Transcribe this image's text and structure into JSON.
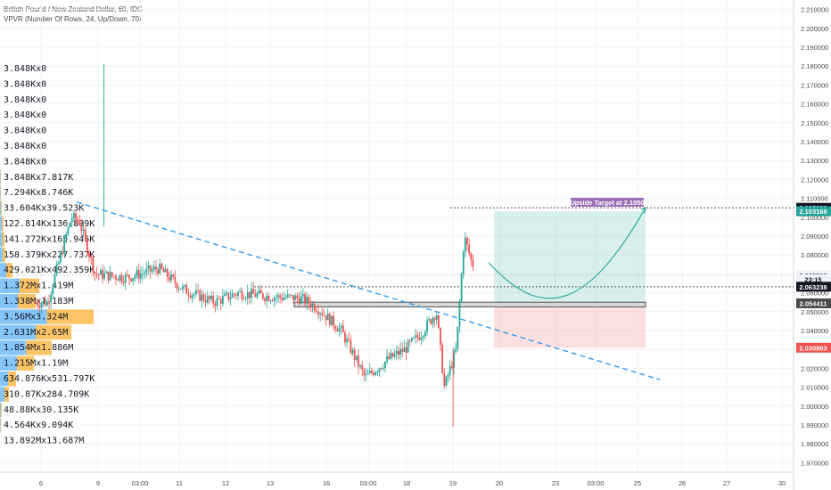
{
  "header": {
    "symbol_line": "British Pound / New Zealand Dollar, 60, IDC",
    "indicator_line": "VPVR (Number Of Rows, 24, Up/Down, 70)"
  },
  "volume_profile": {
    "rows": [
      "3.848Kx0",
      "3.848Kx0",
      "3.848Kx0",
      "3.848Kx0",
      "3.848Kx0",
      "3.848Kx0",
      "3.848Kx0",
      "3.848Kx7.817K",
      "7.294Kx8.746K",
      "33.604Kx39.523K",
      "122.814Kx136.899K",
      "141.272Kx165.946K",
      "158.379Kx227.737K",
      "429.021Kx492.359K",
      "1.372Mx1.419M",
      "1.338Mx1.183M",
      "3.56Mx3.324M",
      "2.631Mx2.65M",
      "1.854Mx1.886M",
      "1.215Mx1.19M",
      "634.876Kx531.797K",
      "310.87Kx284.709K",
      "48.88Kx30.135K",
      "4.564Kx9.094K",
      "13.892Mx13.687M"
    ]
  },
  "annotations": {
    "target_label": "Upside Target at 2.1050"
  },
  "price_tags": [
    {
      "text": "2.105000",
      "price": 2.105,
      "bg": "#131722",
      "fg": "#ffffff"
    },
    {
      "text": "2.103168",
      "price": 2.1031,
      "bg": "#26a69a",
      "fg": "#ffffff"
    },
    {
      "text": "2.069300",
      "price": 2.0693,
      "bg": "#f0f3fa",
      "fg": "#131722"
    },
    {
      "text": "23:15",
      "price": 2.0672,
      "bg": "#f0f3fa",
      "fg": "#131722"
    },
    {
      "text": "2.063238",
      "price": 2.0632,
      "bg": "#131722",
      "fg": "#ffffff"
    },
    {
      "text": "2.054411",
      "price": 2.0544,
      "bg": "#4a4a4a",
      "fg": "#ffffff"
    },
    {
      "text": "2.030893",
      "price": 2.0309,
      "bg": "#ef5350",
      "fg": "#ffffff"
    }
  ],
  "colors": {
    "up": "#26a69a",
    "down": "#ef5350",
    "trendline": "#2196f3",
    "profile_up": "#2196f3",
    "profile_down": "#fbb034",
    "target_zone": "#26a69a",
    "stop_zone": "#ef5350"
  },
  "chart_data": {
    "type": "candlestick",
    "title": "British Pound / New Zealand Dollar, 60, IDC",
    "ylim": [
      1.965,
      2.215
    ],
    "y_ticks": [
      "1.970000",
      "1.980000",
      "1.990000",
      "2.000000",
      "2.010000",
      "2.020000",
      "2.030000",
      "2.040000",
      "2.050000",
      "2.060000",
      "2.070000",
      "2.080000",
      "2.090000",
      "2.100000",
      "2.110000",
      "2.120000",
      "2.130000",
      "2.140000",
      "2.150000",
      "2.160000",
      "2.170000",
      "2.180000",
      "2.190000",
      "2.200000",
      "2.210000"
    ],
    "x_ticks": [
      "6",
      "9",
      "03:00",
      "11",
      "12",
      "13",
      "16",
      "03:00",
      "18",
      "19",
      "20",
      "23",
      "03:00",
      "25",
      "26",
      "27",
      "30"
    ],
    "grid": true,
    "price_path": [
      [
        0,
        2.053
      ],
      [
        0.06,
        2.055
      ],
      [
        0.09,
        2.1
      ],
      [
        0.1,
        2.098
      ],
      [
        0.12,
        2.07
      ],
      [
        0.16,
        2.068
      ],
      [
        0.2,
        2.073
      ],
      [
        0.23,
        2.062
      ],
      [
        0.27,
        2.055
      ],
      [
        0.3,
        2.06
      ],
      [
        0.34,
        2.058
      ],
      [
        0.38,
        2.057
      ],
      [
        0.4,
        2.052
      ],
      [
        0.43,
        2.04
      ],
      [
        0.46,
        2.015
      ],
      [
        0.49,
        2.025
      ],
      [
        0.51,
        2.03
      ],
      [
        0.53,
        2.038
      ],
      [
        0.55,
        2.05
      ],
      [
        0.56,
        2.01
      ],
      [
        0.575,
        2.03
      ],
      [
        0.585,
        2.09
      ],
      [
        0.595,
        2.075
      ]
    ],
    "trendline": {
      "from": {
        "x_frac": 0.09,
        "price": 2.108
      },
      "to": {
        "x_frac": 0.83,
        "price": 2.014
      }
    },
    "support_zone": {
      "from_price": 2.0525,
      "to_price": 2.055
    },
    "target_box": {
      "from_price": 2.0544,
      "to_price": 2.1031
    },
    "stop_box": {
      "from_price": 2.0309,
      "to_price": 2.0544
    },
    "projection_curve": [
      [
        0.62,
        2.076
      ],
      [
        0.69,
        2.054
      ],
      [
        0.75,
        2.058
      ],
      [
        0.82,
        2.105
      ]
    ]
  }
}
